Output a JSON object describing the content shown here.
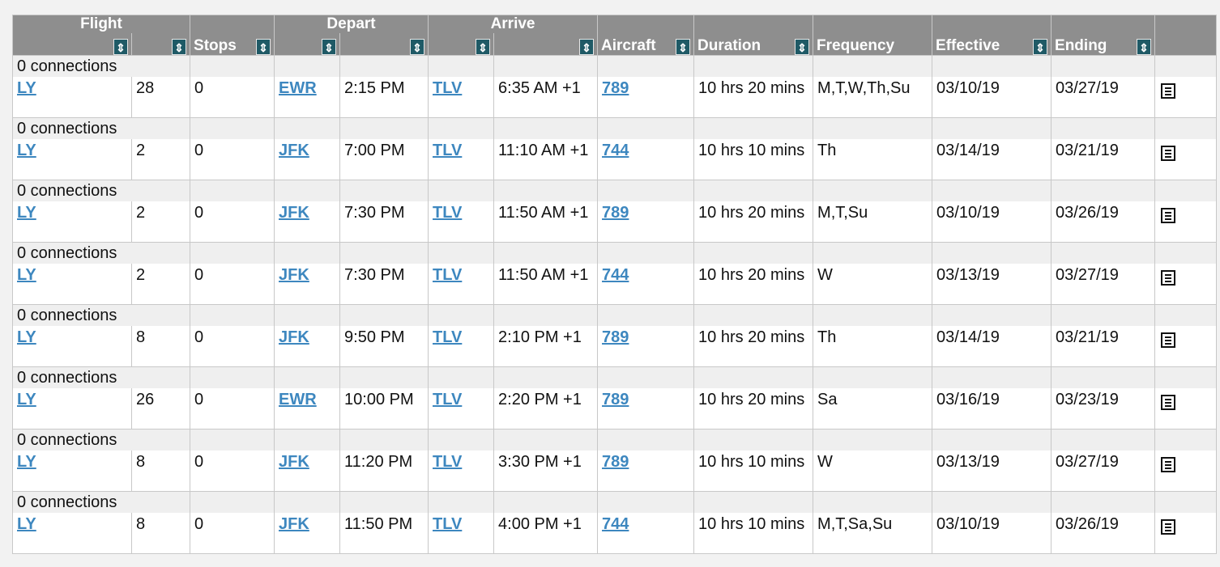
{
  "header": {
    "flight": "Flight",
    "stops": "Stops",
    "depart": "Depart",
    "arrive": "Arrive",
    "aircraft": "Aircraft",
    "duration": "Duration",
    "frequency": "Frequency",
    "effective": "Effective",
    "ending": "Ending",
    "sort_icon": "sort-arrows-icon"
  },
  "colors": {
    "header_bg": "#8e8e8e",
    "link": "#3d87bf",
    "sorter_bg": "#1f5a66",
    "connection_row_bg": "#efefef"
  },
  "rows": [
    {
      "connections": "0 connections",
      "airline": "LY",
      "flight_no": "28",
      "stops": "0",
      "dep_airport": "EWR",
      "dep_time": "2:15 PM",
      "arr_airport": "TLV",
      "arr_time": "6:35 AM +1",
      "aircraft": "789",
      "duration": "10 hrs 20 mins",
      "frequency": "M,T,W,Th,Su",
      "effective": "03/10/19",
      "ending": "03/27/19"
    },
    {
      "connections": "0 connections",
      "airline": "LY",
      "flight_no": "2",
      "stops": "0",
      "dep_airport": "JFK",
      "dep_time": "7:00 PM",
      "arr_airport": "TLV",
      "arr_time": "11:10 AM +1",
      "aircraft": "744",
      "duration": "10 hrs 10 mins",
      "frequency": "Th",
      "effective": "03/14/19",
      "ending": "03/21/19"
    },
    {
      "connections": "0 connections",
      "airline": "LY",
      "flight_no": "2",
      "stops": "0",
      "dep_airport": "JFK",
      "dep_time": "7:30 PM",
      "arr_airport": "TLV",
      "arr_time": "11:50 AM +1",
      "aircraft": "789",
      "duration": "10 hrs 20 mins",
      "frequency": "M,T,Su",
      "effective": "03/10/19",
      "ending": "03/26/19"
    },
    {
      "connections": "0 connections",
      "airline": "LY",
      "flight_no": "2",
      "stops": "0",
      "dep_airport": "JFK",
      "dep_time": "7:30 PM",
      "arr_airport": "TLV",
      "arr_time": "11:50 AM +1",
      "aircraft": "744",
      "duration": "10 hrs 20 mins",
      "frequency": "W",
      "effective": "03/13/19",
      "ending": "03/27/19"
    },
    {
      "connections": "0 connections",
      "airline": "LY",
      "flight_no": "8",
      "stops": "0",
      "dep_airport": "JFK",
      "dep_time": "9:50 PM",
      "arr_airport": "TLV",
      "arr_time": "2:10 PM +1",
      "aircraft": "789",
      "duration": "10 hrs 20 mins",
      "frequency": "Th",
      "effective": "03/14/19",
      "ending": "03/21/19"
    },
    {
      "connections": "0 connections",
      "airline": "LY",
      "flight_no": "26",
      "stops": "0",
      "dep_airport": "EWR",
      "dep_time": "10:00 PM",
      "arr_airport": "TLV",
      "arr_time": "2:20 PM +1",
      "aircraft": "789",
      "duration": "10 hrs 20 mins",
      "frequency": "Sa",
      "effective": "03/16/19",
      "ending": "03/23/19"
    },
    {
      "connections": "0 connections",
      "airline": "LY",
      "flight_no": "8",
      "stops": "0",
      "dep_airport": "JFK",
      "dep_time": "11:20 PM",
      "arr_airport": "TLV",
      "arr_time": "3:30 PM +1",
      "aircraft": "789",
      "duration": "10 hrs 10 mins",
      "frequency": "W",
      "effective": "03/13/19",
      "ending": "03/27/19"
    },
    {
      "connections": "0 connections",
      "airline": "LY",
      "flight_no": "8",
      "stops": "0",
      "dep_airport": "JFK",
      "dep_time": "11:50 PM",
      "arr_airport": "TLV",
      "arr_time": "4:00 PM +1",
      "aircraft": "744",
      "duration": "10 hrs 10 mins",
      "frequency": "M,T,Sa,Su",
      "effective": "03/10/19",
      "ending": "03/26/19"
    }
  ]
}
